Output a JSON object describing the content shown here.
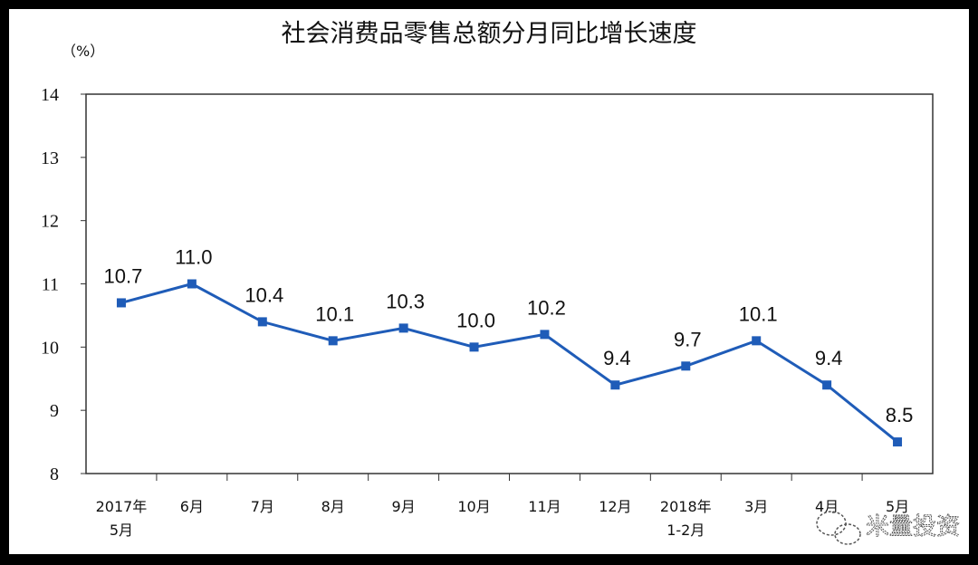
{
  "chart_data": {
    "type": "line",
    "title": "社会消费品零售总额分月同比增长速度",
    "ylabel": "（%）",
    "xlabel": "",
    "ylim": [
      8,
      14
    ],
    "yticks": [
      "8",
      "9",
      "10",
      "11",
      "12",
      "13",
      "14"
    ],
    "categories": [
      [
        "2017年",
        "5月"
      ],
      [
        "6月"
      ],
      [
        "7月"
      ],
      [
        "8月"
      ],
      [
        "9月"
      ],
      [
        "10月"
      ],
      [
        "11月"
      ],
      [
        "12月"
      ],
      [
        "2018年",
        "1-2月"
      ],
      [
        "3月"
      ],
      [
        "4月"
      ],
      [
        "5月"
      ]
    ],
    "series": [
      {
        "name": "同比增长速度",
        "values": [
          10.7,
          11.0,
          10.4,
          10.1,
          10.3,
          10.0,
          10.2,
          9.4,
          9.7,
          10.1,
          9.4,
          8.5
        ],
        "color": "#1f5cb8"
      }
    ],
    "data_labels": [
      "10.7",
      "11.0",
      "10.4",
      "10.1",
      "10.3",
      "10.0",
      "10.2",
      "9.4",
      "9.7",
      "10.1",
      "9.4",
      "8.5"
    ],
    "grid": false
  },
  "watermark": "米量投资"
}
